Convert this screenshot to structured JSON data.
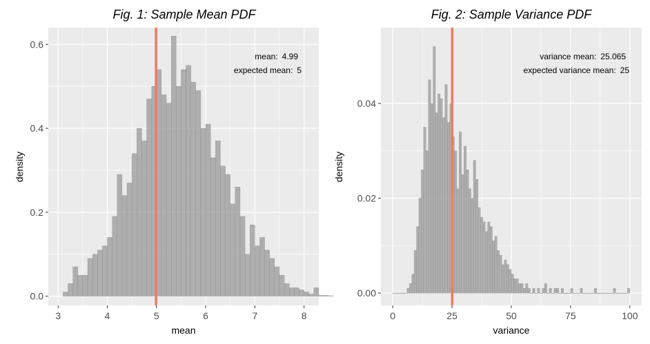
{
  "chart_data": [
    {
      "type": "bar",
      "subtype": "histogram",
      "title": "Fig. 1: Sample Mean PDF",
      "xlabel": "mean",
      "ylabel": "density",
      "xlim": [
        2.8,
        8.3
      ],
      "ylim": [
        -0.022,
        0.64
      ],
      "xticks": [
        3,
        4,
        5,
        6,
        7,
        8
      ],
      "yticks": [
        0.0,
        0.2,
        0.4,
        0.6
      ],
      "ytick_labels": [
        "0.0",
        "0.2",
        "0.4",
        "0.6"
      ],
      "bin_start": 3.1,
      "bin_width": 0.1,
      "values": [
        0.01,
        0.03,
        0.07,
        0.05,
        0.05,
        0.09,
        0.1,
        0.11,
        0.12,
        0.14,
        0.19,
        0.29,
        0.24,
        0.27,
        0.34,
        0.4,
        0.37,
        0.47,
        0.5,
        0.54,
        0.48,
        0.46,
        0.62,
        0.5,
        0.54,
        0.55,
        0.51,
        0.49,
        0.4,
        0.41,
        0.33,
        0.37,
        0.31,
        0.29,
        0.22,
        0.26,
        0.19,
        0.1,
        0.17,
        0.12,
        0.14,
        0.11,
        0.09,
        0.07,
        0.05,
        0.03,
        0.02,
        0.02,
        0.015,
        0.01,
        0.005,
        0.02,
        0.002,
        0.002,
        0.001
      ],
      "vline": 4.99,
      "vline_color": "#F07C5F",
      "bar_color": "#999999",
      "panel_bg": "#EBEBEB",
      "grid": true,
      "annotations": [
        {
          "label": "mean:",
          "value": "4.99"
        },
        {
          "label": "expected mean:",
          "value": "5"
        }
      ]
    },
    {
      "type": "bar",
      "subtype": "histogram",
      "title": "Fig. 2: Sample Variance PDF",
      "xlabel": "variance",
      "ylabel": "density",
      "xlim": [
        -5,
        105
      ],
      "ylim": [
        -0.0026,
        0.056
      ],
      "xticks": [
        0,
        25,
        50,
        75,
        100
      ],
      "yticks": [
        0.0,
        0.02,
        0.04
      ],
      "ytick_labels": [
        "0.00",
        "0.02",
        "0.04"
      ],
      "bin_start": 0,
      "bin_width": 1,
      "values": [
        0,
        0,
        0,
        0,
        0,
        0,
        0.001,
        0.002,
        0.004,
        0.009,
        0.014,
        0.02,
        0.026,
        0.035,
        0.03,
        0.045,
        0.04,
        0.052,
        0.038,
        0.042,
        0.041,
        0.037,
        0.044,
        0.036,
        0.04,
        0.033,
        0.03,
        0.022,
        0.034,
        0.025,
        0.031,
        0.026,
        0.022,
        0.02,
        0.028,
        0.024,
        0.018,
        0.016,
        0.015,
        0.013,
        0.015,
        0.014,
        0.011,
        0.012,
        0.009,
        0.008,
        0.006,
        0.007,
        0.006,
        0.005,
        0.004,
        0.003,
        0.003,
        0.002,
        0.002,
        0.001,
        0.002,
        0.001,
        0,
        0.001,
        0,
        0.001,
        0,
        0.001,
        0.002,
        0,
        0.001,
        0,
        0.001,
        0.001,
        0,
        0.001,
        0,
        0,
        0,
        0.001,
        0,
        0,
        0,
        0.001,
        0,
        0,
        0,
        0,
        0,
        0.001,
        0,
        0,
        0,
        0,
        0,
        0,
        0,
        0.001,
        0,
        0,
        0,
        0,
        0,
        0.001
      ],
      "vline": 25.065,
      "vline_color": "#F07C5F",
      "bar_color": "#999999",
      "panel_bg": "#EBEBEB",
      "grid": true,
      "annotations": [
        {
          "label": "variance mean:",
          "value": "25.065"
        },
        {
          "label": "expected variance mean:",
          "value": "25"
        }
      ]
    }
  ]
}
